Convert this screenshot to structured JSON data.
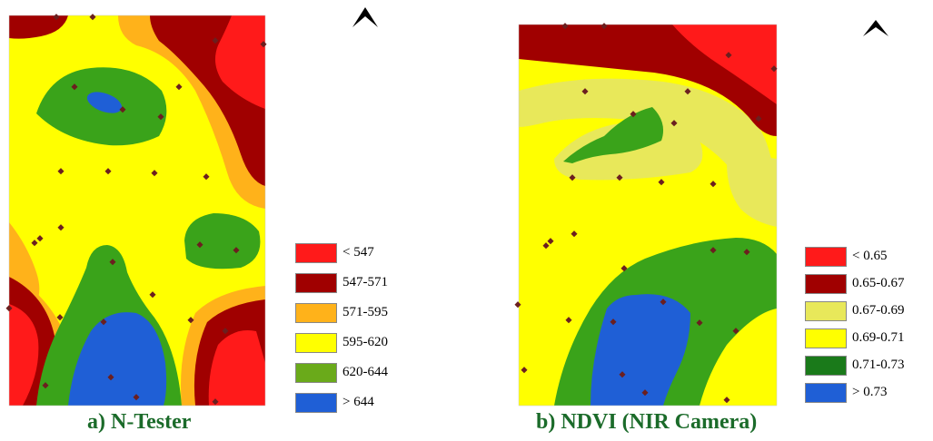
{
  "colors": {
    "red": "#ff1a1a",
    "dark_red": "#a00000",
    "orange": "#ffb21a",
    "yellow": "#ffff00",
    "pale_yellow": "#e8e85a",
    "light_green": "#6aaa1a",
    "green": "#3aa31a",
    "dark_green": "#1a7a1a",
    "blue": "#1f5fd6",
    "sample_point": "#6b1f1f"
  },
  "maps": [
    {
      "caption": "a) N-Tester",
      "north_arrow_icon": "north-arrow-icon",
      "legend": [
        {
          "label": "< 547",
          "color": "#ff1a1a"
        },
        {
          "label": " 547-571",
          "color": "#a00000"
        },
        {
          "label": "571-595",
          "color": "#ffb21a"
        },
        {
          "label": "595-620",
          "color": "#ffff00"
        },
        {
          "label": "620-644",
          "color": "#6aaa1a"
        },
        {
          "label": "> 644",
          "color": "#1f5fd6"
        }
      ]
    },
    {
      "caption": "b) NDVI (NIR Camera)",
      "north_arrow_icon": "north-arrow-icon",
      "legend": [
        {
          "label": "< 0.65",
          "color": "#ff1a1a"
        },
        {
          "label": " 0.65-0.67",
          "color": "#a00000"
        },
        {
          "label": "0.67-0.69",
          "color": "#e8e85a"
        },
        {
          "label": "0.69-0.71",
          "color": "#ffff00"
        },
        {
          "label": "0.71-0.73",
          "color": "#1a7a1a"
        },
        {
          "label": "> 0.73",
          "color": "#1f5fd6"
        }
      ]
    }
  ]
}
